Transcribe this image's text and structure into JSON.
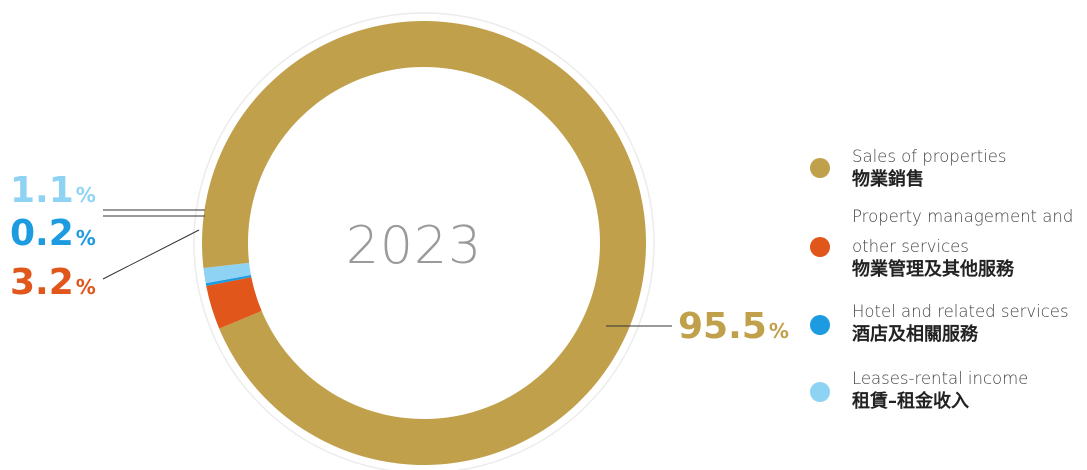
{
  "chart_data": {
    "type": "pie",
    "title": "2023",
    "categories": [
      "Sales of properties 物業銷售",
      "Property management and other services 物業管理及其他服務",
      "Hotel and related services 酒店及相關服務",
      "Leases-rental income 租賃–租金收入"
    ],
    "values": [
      95.5,
      3.2,
      0.2,
      1.1
    ],
    "unit": "%",
    "colors": [
      "#C1A04C",
      "#E0561B",
      "#1C9BE0",
      "#8FD3F4"
    ],
    "legend_position": "right"
  },
  "center_label": "2023",
  "percent_symbol": "%",
  "labels": [
    {
      "value": "95.5",
      "color": "#C1A04C"
    },
    {
      "value": "3.2",
      "color": "#E0561B"
    },
    {
      "value": "0.2",
      "color": "#1C9BE0"
    },
    {
      "value": "1.1",
      "color": "#8FD3F4"
    }
  ],
  "legend": [
    {
      "en": "Sales of properties",
      "zh": "物業銷售",
      "color": "#C1A04C"
    },
    {
      "en_line1": "Property management and",
      "en_line2": "other services",
      "zh": "物業管理及其他服務",
      "color": "#E0561B"
    },
    {
      "en": "Hotel and related services",
      "zh": "酒店及相關服務",
      "color": "#1C9BE0"
    },
    {
      "en": "Leases-rental income",
      "zh": "租賃–租金收入",
      "color": "#8FD3F4"
    }
  ]
}
